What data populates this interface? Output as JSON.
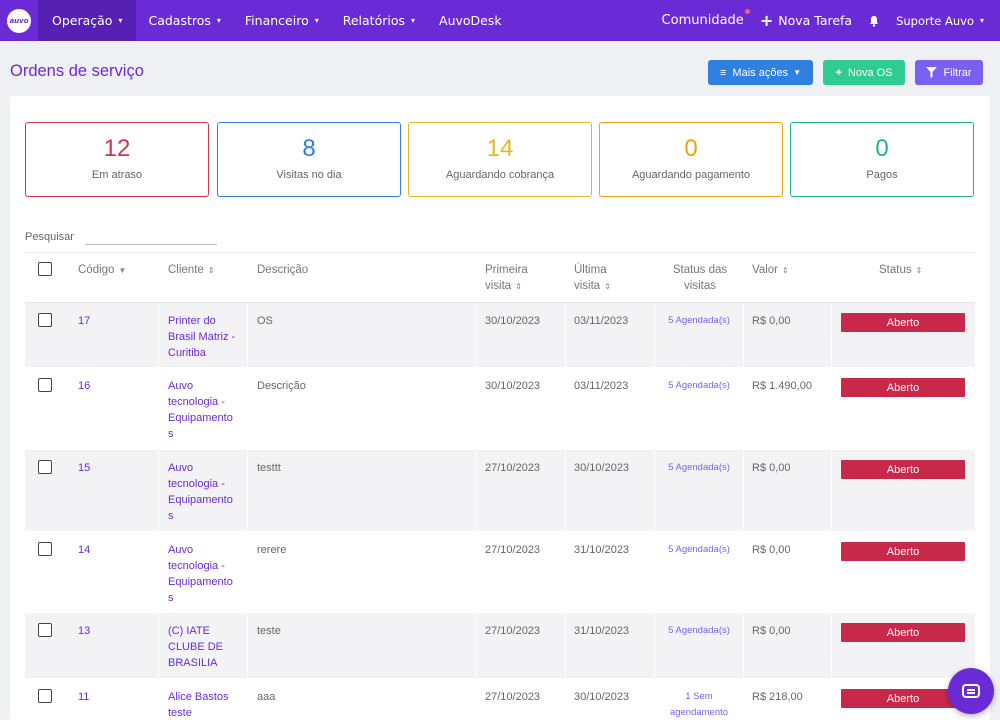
{
  "nav": {
    "logo_text": "auvo",
    "items": [
      {
        "label": "Operação",
        "caret": "▾"
      },
      {
        "label": "Cadastros",
        "caret": "▾"
      },
      {
        "label": "Financeiro",
        "caret": "▾"
      },
      {
        "label": "Relatórios",
        "caret": "▾"
      },
      {
        "label": "AuvoDesk",
        "caret": ""
      }
    ],
    "comunidade": "Comunidade",
    "nova_tarefa": "Nova Tarefa",
    "user": "Suporte Auvo",
    "user_caret": "▾"
  },
  "page": {
    "title": "Ordens de serviço",
    "buttons": {
      "mais_acoes": "Mais ações",
      "nova_os": "Nova OS",
      "filtrar": "Filtrar"
    }
  },
  "stats": [
    {
      "value": "12",
      "label": "Em atraso",
      "color": "#d0344f"
    },
    {
      "value": "8",
      "label": "Visitas no dia",
      "color": "#2f7fe0"
    },
    {
      "value": "14",
      "label": "Aguardando cobrança",
      "color": "#e6b820"
    },
    {
      "value": "0",
      "label": "Aguardando pagamento",
      "color": "#f0a010"
    },
    {
      "value": "0",
      "label": "Pagos",
      "color": "#22b583"
    }
  ],
  "search": {
    "label": "Pesquisar",
    "value": ""
  },
  "table": {
    "headers": {
      "codigo": "Código",
      "cliente": "Cliente",
      "descricao": "Descrição",
      "primeira_1": "Primeira",
      "primeira_2": "visita",
      "ultima_1": "Última",
      "ultima_2": "visita",
      "status_visitas_1": "Status das",
      "status_visitas_2": "visitas",
      "valor": "Valor",
      "status": "Status"
    },
    "rows": [
      {
        "codigo": "17",
        "cliente_lines": [
          "Printer do",
          "Brasil Matriz -",
          "Curitiba"
        ],
        "descricao": "OS",
        "primeira": "30/10/2023",
        "ultima": "03/11/2023",
        "status_visitas_lines": [
          "5 Agendada(s)"
        ],
        "valor": "R$ 0,00",
        "status": "Aberto"
      },
      {
        "codigo": "16",
        "cliente_lines": [
          "Auvo",
          "tecnologia -",
          "Equipamento",
          "s"
        ],
        "descricao": "Descrição",
        "primeira": "30/10/2023",
        "ultima": "03/11/2023",
        "status_visitas_lines": [
          "5 Agendada(s)"
        ],
        "valor": "R$ 1.490,00",
        "status": "Aberto"
      },
      {
        "codigo": "15",
        "cliente_lines": [
          "Auvo",
          "tecnologia -",
          "Equipamento",
          "s"
        ],
        "descricao": "testtt",
        "primeira": "27/10/2023",
        "ultima": "30/10/2023",
        "status_visitas_lines": [
          "5 Agendada(s)"
        ],
        "valor": "R$ 0,00",
        "status": "Aberto"
      },
      {
        "codigo": "14",
        "cliente_lines": [
          "Auvo",
          "tecnologia -",
          "Equipamento",
          "s"
        ],
        "descricao": "rerere",
        "primeira": "27/10/2023",
        "ultima": "31/10/2023",
        "status_visitas_lines": [
          "5 Agendada(s)"
        ],
        "valor": "R$ 0,00",
        "status": "Aberto"
      },
      {
        "codigo": "13",
        "cliente_lines": [
          "(C) IATE",
          "CLUBE DE",
          "BRASILIA"
        ],
        "descricao": "teste",
        "primeira": "27/10/2023",
        "ultima": "31/10/2023",
        "status_visitas_lines": [
          "5 Agendada(s)"
        ],
        "valor": "R$ 0,00",
        "status": "Aberto"
      },
      {
        "codigo": "11",
        "cliente_lines": [
          "Alice Bastos",
          "teste"
        ],
        "descricao": "aaa",
        "primeira": "27/10/2023",
        "ultima": "30/10/2023",
        "status_visitas_lines": [
          "1 Sem",
          "agendamento"
        ],
        "valor": "R$ 218,00",
        "status": "Aberto"
      }
    ]
  },
  "colors": {
    "primary": "#6a2bd6",
    "status_aberto": "#c8284a"
  }
}
